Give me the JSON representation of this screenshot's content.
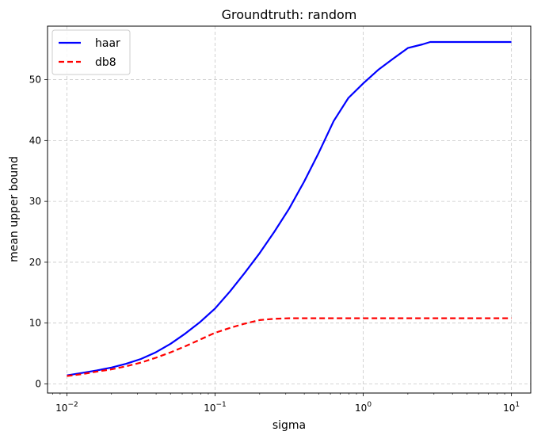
{
  "chart_data": {
    "type": "line",
    "title": "Groundtruth: random",
    "xlabel": "sigma",
    "ylabel": "mean upper bound",
    "xscale": "log",
    "xlim": [
      0.0074,
      13.5
    ],
    "ylim": [
      -1.5,
      58.8
    ],
    "xticks": [
      {
        "value": 0.01,
        "base": "10",
        "exp": "−2"
      },
      {
        "value": 0.1,
        "base": "10",
        "exp": "−1"
      },
      {
        "value": 1,
        "base": "10",
        "exp": "0"
      },
      {
        "value": 10,
        "base": "10",
        "exp": "1"
      }
    ],
    "yticks": [
      0,
      10,
      20,
      30,
      40,
      50
    ],
    "grid": true,
    "legend_position": "upper-left",
    "series": [
      {
        "name": "haar",
        "color": "#0000ff",
        "style": "solid",
        "x": [
          0.01,
          0.0126,
          0.0158,
          0.02,
          0.0251,
          0.0316,
          0.0398,
          0.0501,
          0.0631,
          0.0794,
          0.1,
          0.126,
          0.158,
          0.2,
          0.251,
          0.316,
          0.398,
          0.501,
          0.631,
          0.794,
          1.0,
          1.26,
          1.58,
          2.0,
          2.51,
          2.83,
          3.98,
          5.01,
          6.31,
          7.94,
          10.0
        ],
        "values": [
          1.4,
          1.8,
          2.2,
          2.7,
          3.3,
          4.1,
          5.2,
          6.6,
          8.3,
          10.2,
          12.4,
          15.2,
          18.2,
          21.5,
          25.0,
          28.8,
          33.2,
          38.0,
          43.2,
          47.0,
          49.4,
          51.6,
          53.4,
          55.2,
          55.8,
          56.2,
          56.2,
          56.2,
          56.2,
          56.2,
          56.2
        ]
      },
      {
        "name": "db8",
        "color": "#ff0000",
        "style": "dashed",
        "x": [
          0.01,
          0.0126,
          0.0158,
          0.02,
          0.0251,
          0.0316,
          0.0398,
          0.0501,
          0.0631,
          0.0794,
          0.1,
          0.126,
          0.158,
          0.2,
          0.251,
          0.316,
          0.398,
          0.501,
          0.631,
          0.794,
          1.0,
          1.26,
          1.58,
          2.0,
          2.51,
          3.16,
          3.98,
          5.01,
          6.31,
          7.94,
          10.0
        ],
        "values": [
          1.3,
          1.6,
          2.0,
          2.4,
          2.9,
          3.5,
          4.3,
          5.2,
          6.2,
          7.3,
          8.4,
          9.2,
          9.9,
          10.5,
          10.7,
          10.8,
          10.8,
          10.8,
          10.8,
          10.8,
          10.8,
          10.8,
          10.8,
          10.8,
          10.8,
          10.8,
          10.8,
          10.8,
          10.8,
          10.8,
          10.8
        ]
      }
    ]
  }
}
